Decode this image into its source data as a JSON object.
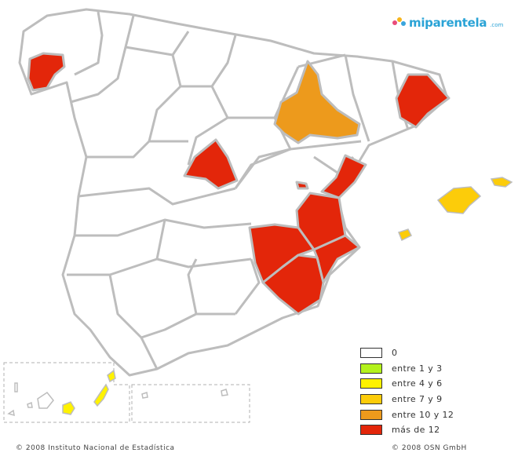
{
  "branding": {
    "logo_text": "miparentela",
    "logo_suffix": ".com",
    "logo_color": "#2aa3d6"
  },
  "legend": {
    "items": [
      {
        "label": "0",
        "color": "#ffffff"
      },
      {
        "label": "entre 1 y 3",
        "color": "#b3f21c"
      },
      {
        "label": "entre 4 y 6",
        "color": "#fff200"
      },
      {
        "label": "entre 7 y 9",
        "color": "#fccc0a"
      },
      {
        "label": "entre 10 y 12",
        "color": "#ed9a1c"
      },
      {
        "label": "más de 12",
        "color": "#e3260a"
      }
    ]
  },
  "regions": {
    "default_color": "#ffffff",
    "border_color": "#bdbdbd",
    "highlighted": [
      {
        "name": "Pontevedra",
        "category": "más de 12"
      },
      {
        "name": "Barcelona",
        "category": "más de 12"
      },
      {
        "name": "Madrid",
        "category": "más de 12"
      },
      {
        "name": "Castellón",
        "category": "más de 12"
      },
      {
        "name": "Valencia",
        "category": "más de 12"
      },
      {
        "name": "Albacete",
        "category": "más de 12"
      },
      {
        "name": "Murcia",
        "category": "más de 12"
      },
      {
        "name": "Alicante",
        "category": "más de 12"
      },
      {
        "name": "Zaragoza",
        "category": "entre 10 y 12"
      },
      {
        "name": "Islas Baleares",
        "category": "entre 7 y 9"
      },
      {
        "name": "Las Palmas",
        "category": "entre 4 y 6"
      }
    ]
  },
  "footer": {
    "left": "© 2008 Instituto Nacional de Estadística",
    "right": "© 2008 OSN GmbH"
  }
}
